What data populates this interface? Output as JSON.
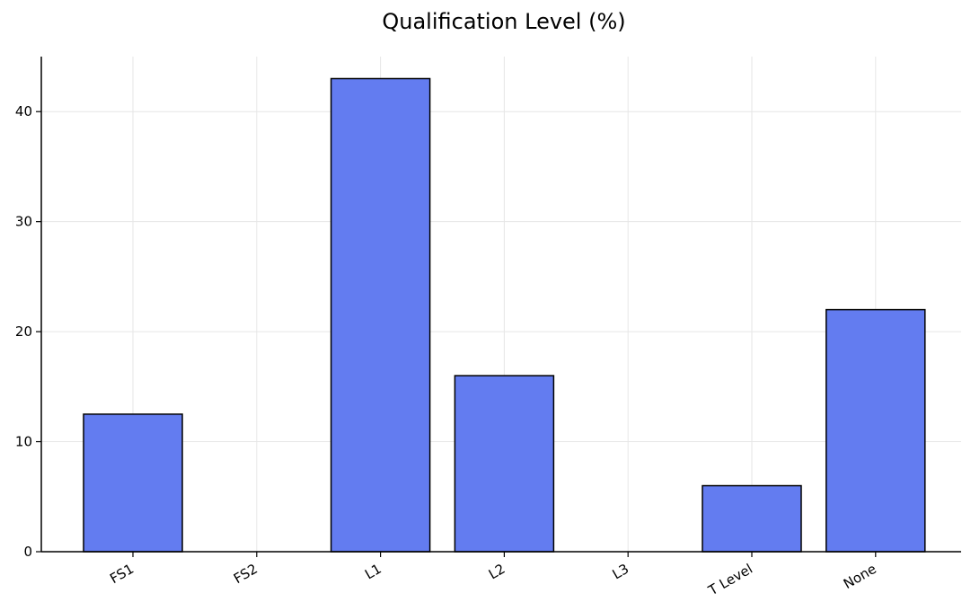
{
  "chart_data": {
    "type": "bar",
    "title": "Qualification Level (%)",
    "xlabel": "",
    "ylabel": "",
    "categories": [
      "FS1",
      "FS2",
      "L1",
      "L2",
      "L3",
      "T Level",
      "None"
    ],
    "values": [
      12.5,
      0,
      43,
      16,
      0,
      6,
      22
    ],
    "ylim": [
      0,
      45
    ],
    "yticks": [
      0,
      10,
      20,
      30,
      40
    ],
    "grid": true,
    "bar_color": "#637cf0",
    "bar_edge_color": "#000000",
    "grid_color": "#e6e6e6"
  }
}
